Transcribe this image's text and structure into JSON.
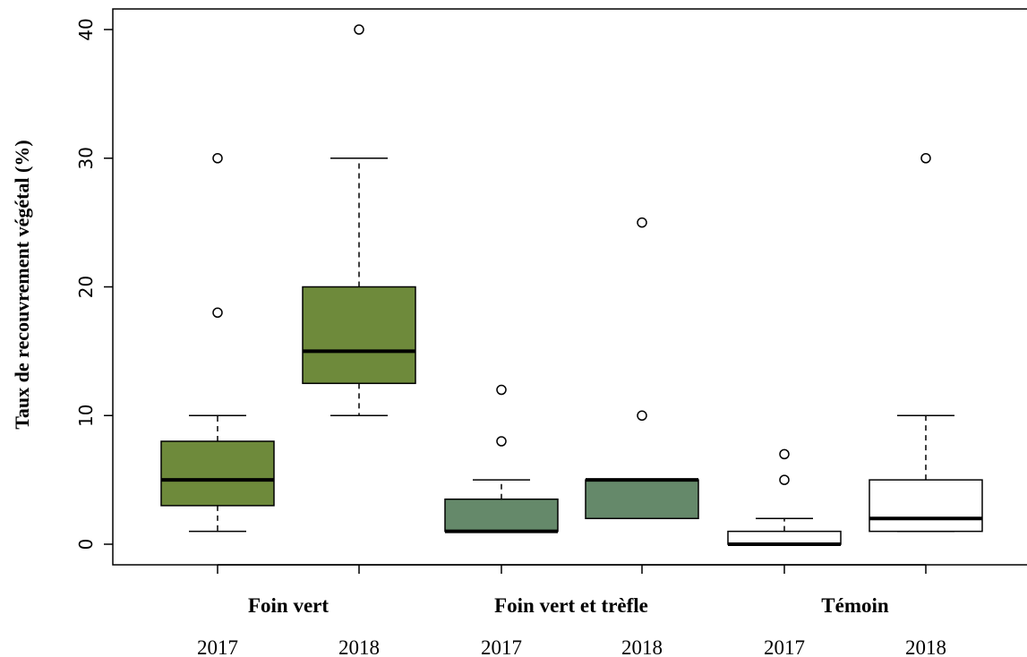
{
  "chart_data": {
    "type": "boxplot",
    "ylabel": "Taux de recouvrement végétal (%)",
    "ylim": [
      -1.6,
      41.6
    ],
    "yticks": [
      0,
      10,
      20,
      30,
      40
    ],
    "grid": false,
    "groups": [
      {
        "label": "Foin vert"
      },
      {
        "label": "Foin vert et trèfle"
      },
      {
        "label": "Témoin"
      }
    ],
    "boxes": [
      {
        "group": 0,
        "year": "2017",
        "fill": "#6e8a3b",
        "whisker_low": 1,
        "q1": 3,
        "median": 5,
        "q3": 8,
        "whisker_high": 10,
        "outliers": [
          18,
          30
        ]
      },
      {
        "group": 0,
        "year": "2018",
        "fill": "#6e8a3b",
        "whisker_low": 10,
        "q1": 12.5,
        "median": 15,
        "q3": 20,
        "whisker_high": 30,
        "outliers": [
          40
        ]
      },
      {
        "group": 1,
        "year": "2017",
        "fill": "#65896a",
        "whisker_low": 1,
        "q1": 1,
        "median": 1,
        "q3": 3.5,
        "whisker_high": 5,
        "outliers": [
          8,
          12
        ]
      },
      {
        "group": 1,
        "year": "2018",
        "fill": "#65896a",
        "whisker_low": 2,
        "q1": 2,
        "median": 5,
        "q3": 5,
        "whisker_high": 5,
        "outliers": [
          10,
          25
        ]
      },
      {
        "group": 2,
        "year": "2017",
        "fill": "#ffffff",
        "whisker_low": 0,
        "q1": 0,
        "median": 0,
        "q3": 1,
        "whisker_high": 2,
        "outliers": [
          5,
          7
        ]
      },
      {
        "group": 2,
        "year": "2018",
        "fill": "#ffffff",
        "whisker_low": 1,
        "q1": 1,
        "median": 2,
        "q3": 5,
        "whisker_high": 10,
        "outliers": [
          30
        ]
      }
    ]
  }
}
